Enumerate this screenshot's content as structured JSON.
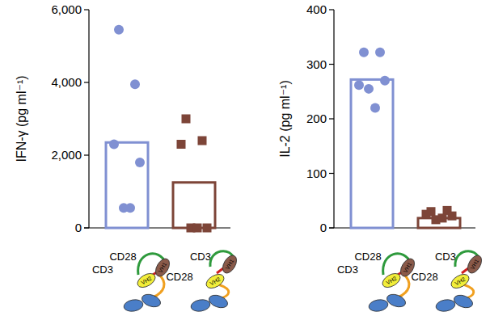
{
  "chart_data": [
    {
      "type": "bar",
      "y_label": "IFN-γ (pg ml⁻¹)",
      "categories": [
        [
          "CD28",
          "CD3"
        ],
        [
          "CD3",
          "CD28"
        ]
      ],
      "values": [
        2350,
        1250
      ],
      "colors": [
        "#8090d2",
        "#7d4538"
      ],
      "points": [
        [
          5450,
          3950,
          2300,
          1800,
          550,
          550
        ],
        [
          3000,
          2400,
          2300,
          0,
          0,
          0
        ]
      ],
      "ylim": [
        0,
        6000
      ],
      "yticks": [
        0,
        {
          "value": 2000,
          "label": "2,000"
        },
        {
          "value": 4000,
          "label": "4,000"
        },
        {
          "value": 6000,
          "label": "6,000"
        }
      ],
      "grid": false,
      "annotations": [
        [
          "VH2",
          "VH1"
        ],
        [
          "VH2",
          "VH1"
        ]
      ]
    },
    {
      "type": "bar",
      "y_label": "IL-2 (pg ml⁻¹)",
      "categories": [
        [
          "CD28",
          "CD3"
        ],
        [
          "CD3",
          "CD28"
        ]
      ],
      "values": [
        272,
        18
      ],
      "colors": [
        "#8090d2",
        "#7d4538"
      ],
      "points": [
        [
          322,
          322,
          262,
          270,
          255,
          220
        ],
        [
          30,
          32,
          25,
          22,
          15,
          18
        ]
      ],
      "ylim": [
        0,
        400
      ],
      "yticks": [
        0,
        100,
        200,
        300,
        400
      ],
      "grid": false,
      "annotations": [
        [
          "VH2",
          "VH1"
        ],
        [
          "VH2",
          "VH1"
        ]
      ]
    }
  ]
}
